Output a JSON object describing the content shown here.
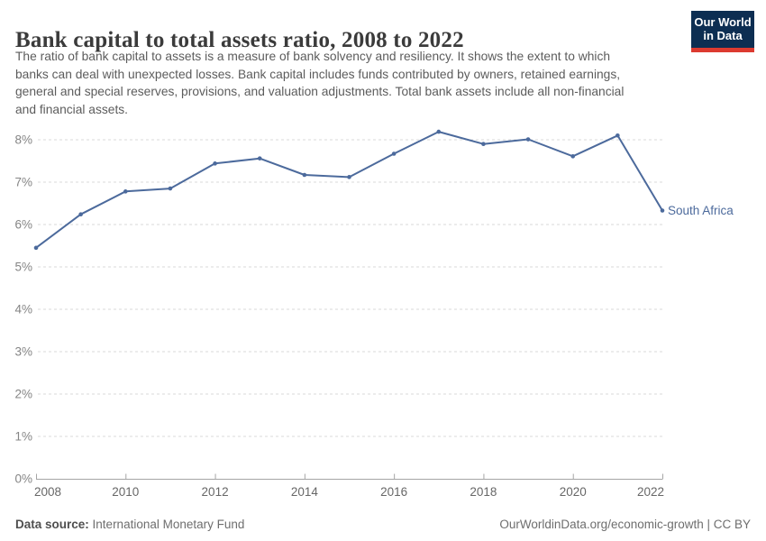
{
  "header": {
    "title": "Bank capital to total assets ratio, 2008 to 2022",
    "subtitle_lines": [
      "The ratio of bank capital to assets is a measure of bank solvency and resiliency. It shows the extent to which",
      "banks can deal with unexpected losses. Bank capital includes funds contributed by owners, retained earnings,",
      "general and special reserves, provisions, and valuation adjustments. Total bank assets include all non-financial",
      "and financial assets."
    ],
    "logo": {
      "line1": "Our World",
      "line2": "in Data",
      "bg_color": "#0d2e52",
      "accent_color": "#dc3a30"
    }
  },
  "chart_data": {
    "type": "line",
    "title": "Bank capital to total assets ratio, 2008 to 2022",
    "x": [
      2008,
      2009,
      2010,
      2011,
      2012,
      2013,
      2014,
      2015,
      2016,
      2017,
      2018,
      2019,
      2020,
      2021,
      2022
    ],
    "series": [
      {
        "name": "South Africa",
        "color": "#4C6A9C",
        "values": [
          5.45,
          6.24,
          6.78,
          6.85,
          7.44,
          7.56,
          7.17,
          7.12,
          7.67,
          8.19,
          7.9,
          8.01,
          7.61,
          8.1,
          6.33
        ]
      }
    ],
    "xlabel": "",
    "ylabel": "",
    "xlim": [
      2008,
      2022
    ],
    "ylim": [
      0,
      8
    ],
    "x_ticks": [
      2008,
      2010,
      2012,
      2014,
      2016,
      2018,
      2020,
      2022
    ],
    "y_ticks": [
      0,
      1,
      2,
      3,
      4,
      5,
      6,
      7,
      8
    ],
    "y_tick_suffix": "%",
    "grid": "horizontal-dashed",
    "legend_position": "end-of-line-label"
  },
  "footer": {
    "datasource_label": "Data source:",
    "datasource_value": "International Monetary Fund",
    "attribution": "OurWorldinData.org/economic-growth | CC BY"
  }
}
